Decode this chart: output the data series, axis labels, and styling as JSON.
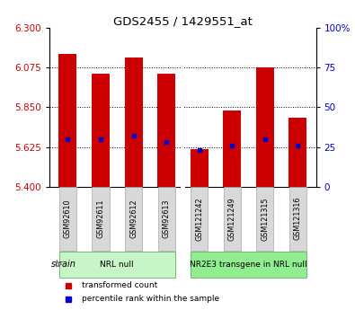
{
  "title": "GDS2455 / 1429551_at",
  "samples": [
    "GSM92610",
    "GSM92611",
    "GSM92612",
    "GSM92613",
    "GSM121242",
    "GSM121249",
    "GSM121315",
    "GSM121316"
  ],
  "transformed_counts": [
    6.155,
    6.04,
    6.13,
    6.04,
    5.615,
    5.83,
    6.075,
    5.79
  ],
  "percentile_ranks": [
    30,
    30,
    32,
    28,
    23,
    26,
    30,
    26
  ],
  "ylim_left": [
    5.4,
    6.3
  ],
  "yticks_left": [
    5.4,
    5.625,
    5.85,
    6.075,
    6.3
  ],
  "ylim_right": [
    0,
    100
  ],
  "yticks_right": [
    0,
    25,
    50,
    75,
    100
  ],
  "yticklabels_right": [
    "0",
    "25",
    "50",
    "75",
    "100%"
  ],
  "groups": [
    {
      "label": "NRL null",
      "indices": [
        0,
        1,
        2,
        3
      ],
      "color": "#c8f5c8"
    },
    {
      "label": "NR2E3 transgene in NRL null",
      "indices": [
        4,
        5,
        6,
        7
      ],
      "color": "#90ee90"
    }
  ],
  "bar_color": "#cc0000",
  "marker_color": "#0000cc",
  "bar_width": 0.55,
  "base_value": 5.4,
  "tick_label_color_left": "#cc0000",
  "tick_label_color_right": "#0000cc",
  "legend_bar_label": "transformed count",
  "legend_marker_label": "percentile rank within the sample",
  "strain_label": "strain",
  "bg_color": "#ffffff"
}
